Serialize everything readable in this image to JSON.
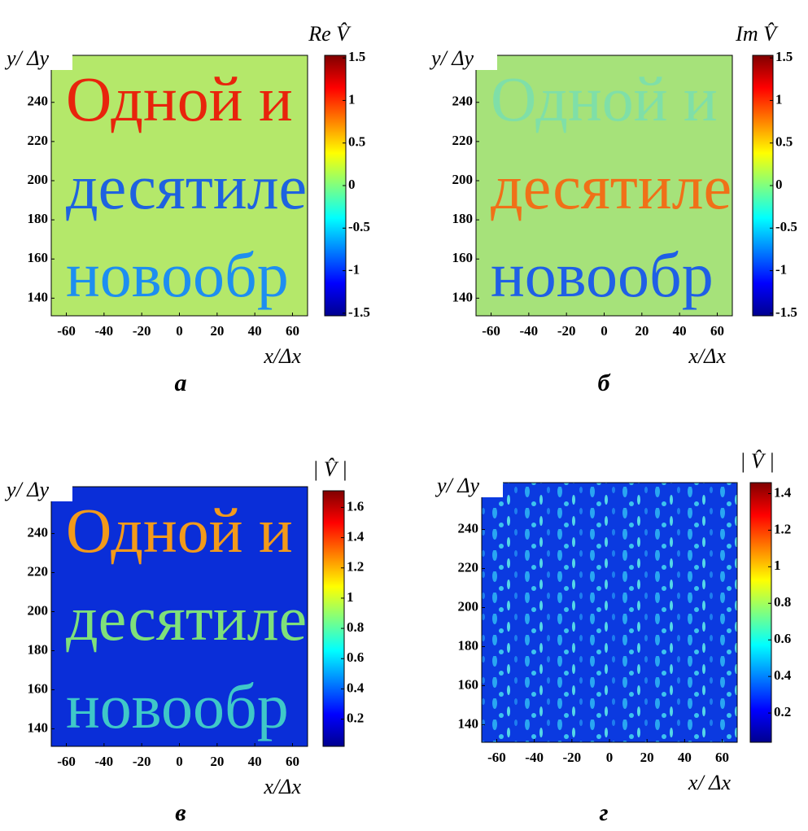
{
  "chart_data": [
    {
      "type": "heatmap",
      "panel_label": "а",
      "colorbar_label": "Re V̂",
      "x_label": "x/Δx",
      "y_label": "y/ Δy",
      "xlim": [
        -68,
        68
      ],
      "xticks": [
        -60,
        -40,
        -20,
        0,
        20,
        40,
        60
      ],
      "ylim": [
        131,
        264
      ],
      "yticks": [
        140,
        160,
        180,
        200,
        220,
        240
      ],
      "clim": [
        -1.53,
        1.53
      ],
      "cticks": [
        -1.5,
        -1,
        -0.5,
        0,
        0.5,
        1,
        1.5
      ],
      "colormap": "jet",
      "color": "#b4e86a",
      "image_text": [
        {
          "text": "Одной и",
          "color": "#e8240c"
        },
        {
          "text": "десятиле",
          "color": "#1e62e0"
        },
        {
          "text": "новообр",
          "color": "#1d8ef0"
        }
      ]
    },
    {
      "type": "heatmap",
      "panel_label": "б",
      "colorbar_label": "Im V̂",
      "x_label": "x/Δx",
      "y_label": "y/ Δy",
      "xlim": [
        -68,
        68
      ],
      "xticks": [
        -60,
        -40,
        -20,
        0,
        20,
        40,
        60
      ],
      "ylim": [
        131,
        264
      ],
      "yticks": [
        140,
        160,
        180,
        200,
        220,
        240
      ],
      "clim": [
        -1.53,
        1.53
      ],
      "cticks": [
        -1.5,
        -1,
        -0.5,
        0,
        0.5,
        1,
        1.5
      ],
      "colormap": "jet",
      "color": "#a6e27a",
      "image_text": [
        {
          "text": "Одной и",
          "color": "#7fdfa8"
        },
        {
          "text": "десятиле",
          "color": "#f07018"
        },
        {
          "text": "новообр",
          "color": "#1f5fe6"
        }
      ]
    },
    {
      "type": "heatmap",
      "panel_label": "в",
      "colorbar_label": "| V̂ |",
      "x_label": "x/Δx",
      "y_label": "y/ Δy",
      "xlim": [
        -68,
        68
      ],
      "xticks": [
        -60,
        -40,
        -20,
        0,
        20,
        40,
        60
      ],
      "ylim": [
        131,
        264
      ],
      "yticks": [
        140,
        160,
        180,
        200,
        220,
        240
      ],
      "clim": [
        0.02,
        1.71
      ],
      "cticks": [
        0.2,
        0.4,
        0.6,
        0.8,
        1,
        1.2,
        1.4,
        1.6
      ],
      "colormap": "jet",
      "color": "#0a2ed8",
      "image_text": [
        {
          "text": "Одной и",
          "color": "#f39a1a"
        },
        {
          "text": "десятиле",
          "color": "#7fe07a"
        },
        {
          "text": "новообр",
          "color": "#3fc8c8"
        }
      ]
    },
    {
      "type": "heatmap",
      "panel_label": "г",
      "colorbar_label": "| V̂ |",
      "x_label": "x/ Δx",
      "y_label": "y/ Δy",
      "xlim": [
        -68,
        68
      ],
      "xticks": [
        -60,
        -40,
        -20,
        0,
        20,
        40,
        60
      ],
      "ylim": [
        131,
        264
      ],
      "yticks": [
        140,
        160,
        180,
        200,
        220,
        240
      ],
      "clim": [
        0.04,
        1.46
      ],
      "cticks": [
        0.2,
        0.4,
        0.6,
        0.8,
        1,
        1.2,
        1.4
      ],
      "colormap": "jet",
      "color": "#0b3ae0",
      "image_text": []
    }
  ]
}
